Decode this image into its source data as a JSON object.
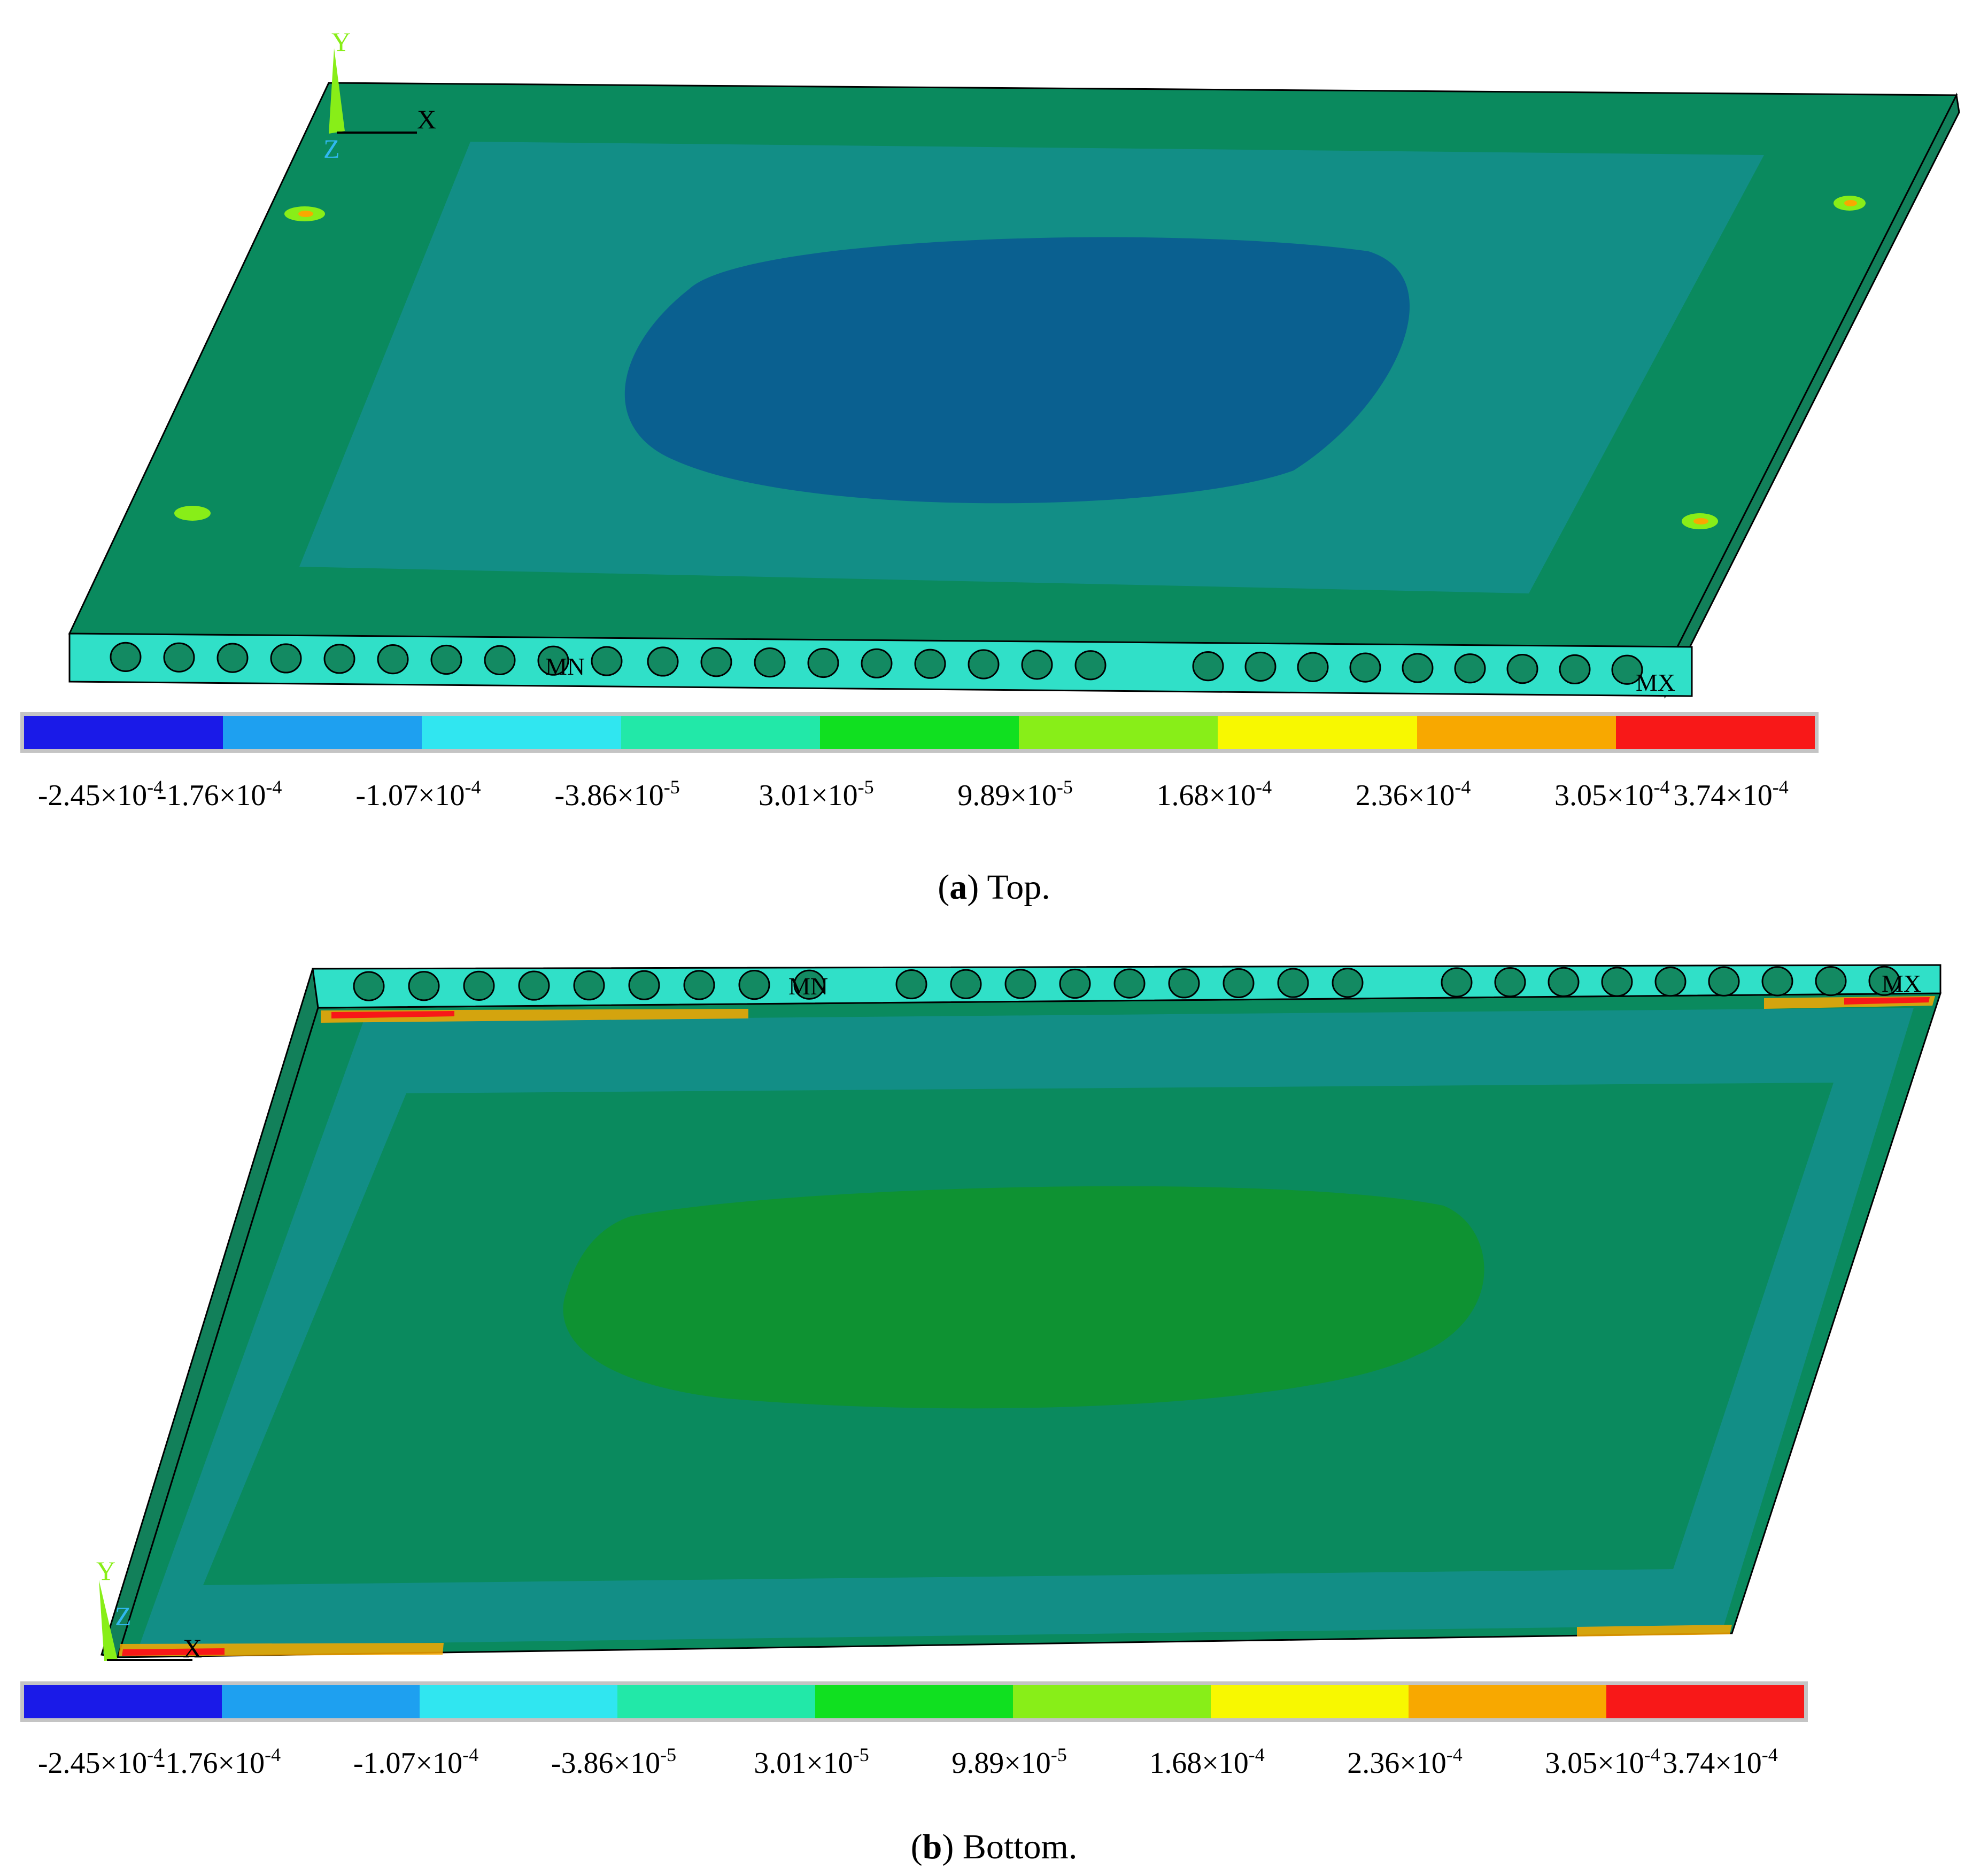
{
  "panels": [
    {
      "id": "a",
      "caption": {
        "open": "(",
        "letter": "a",
        "close": ")",
        "text": " Top."
      },
      "axis_labels": {
        "y": "Y",
        "x": "X",
        "z": "Z"
      },
      "node_labels": {
        "min": "MN",
        "max": "MX"
      }
    },
    {
      "id": "b",
      "caption": {
        "open": "(",
        "letter": "b",
        "close": ")",
        "text": " Bottom."
      },
      "axis_labels": {
        "y": "Y",
        "x": "X",
        "z": "Z"
      },
      "node_labels": {
        "min": "MN",
        "max": "MX"
      }
    }
  ],
  "legend": {
    "colors": [
      "#1a1ae8",
      "#1ea0f0",
      "#30e6f0",
      "#22e8a8",
      "#10e020",
      "#88ee18",
      "#f8f800",
      "#f8a800",
      "#f81818"
    ],
    "labels": [
      {
        "mantissa": "-2.45",
        "times": "×",
        "base": "10",
        "exp": "-4"
      },
      {
        "mantissa": "-1.76",
        "times": "×",
        "base": "10",
        "exp": "-4"
      },
      {
        "mantissa": "-1.07",
        "times": "×",
        "base": "10",
        "exp": "-4"
      },
      {
        "mantissa": "-3.86",
        "times": "×",
        "base": "10",
        "exp": "-5"
      },
      {
        "mantissa": "3.01",
        "times": "×",
        "base": "10",
        "exp": "-5"
      },
      {
        "mantissa": "9.89",
        "times": "×",
        "base": "10",
        "exp": "-5"
      },
      {
        "mantissa": "1.68",
        "times": "×",
        "base": "10",
        "exp": "-4"
      },
      {
        "mantissa": "2.36",
        "times": "×",
        "base": "10",
        "exp": "-4"
      },
      {
        "mantissa": "3.05",
        "times": "×",
        "base": "10",
        "exp": "-4"
      },
      {
        "mantissa": "3.74",
        "times": "×",
        "base": "10",
        "exp": "-4"
      }
    ]
  },
  "colors": {
    "plate_outer": "#0a8a5e",
    "plate_mid": "#128e86",
    "plate_center_top": "#0a6090",
    "plate_center_bottom": "#0e9232",
    "edge_side": "#12805a",
    "rib_strip": "#30e0c8",
    "hole": "#138a62"
  }
}
